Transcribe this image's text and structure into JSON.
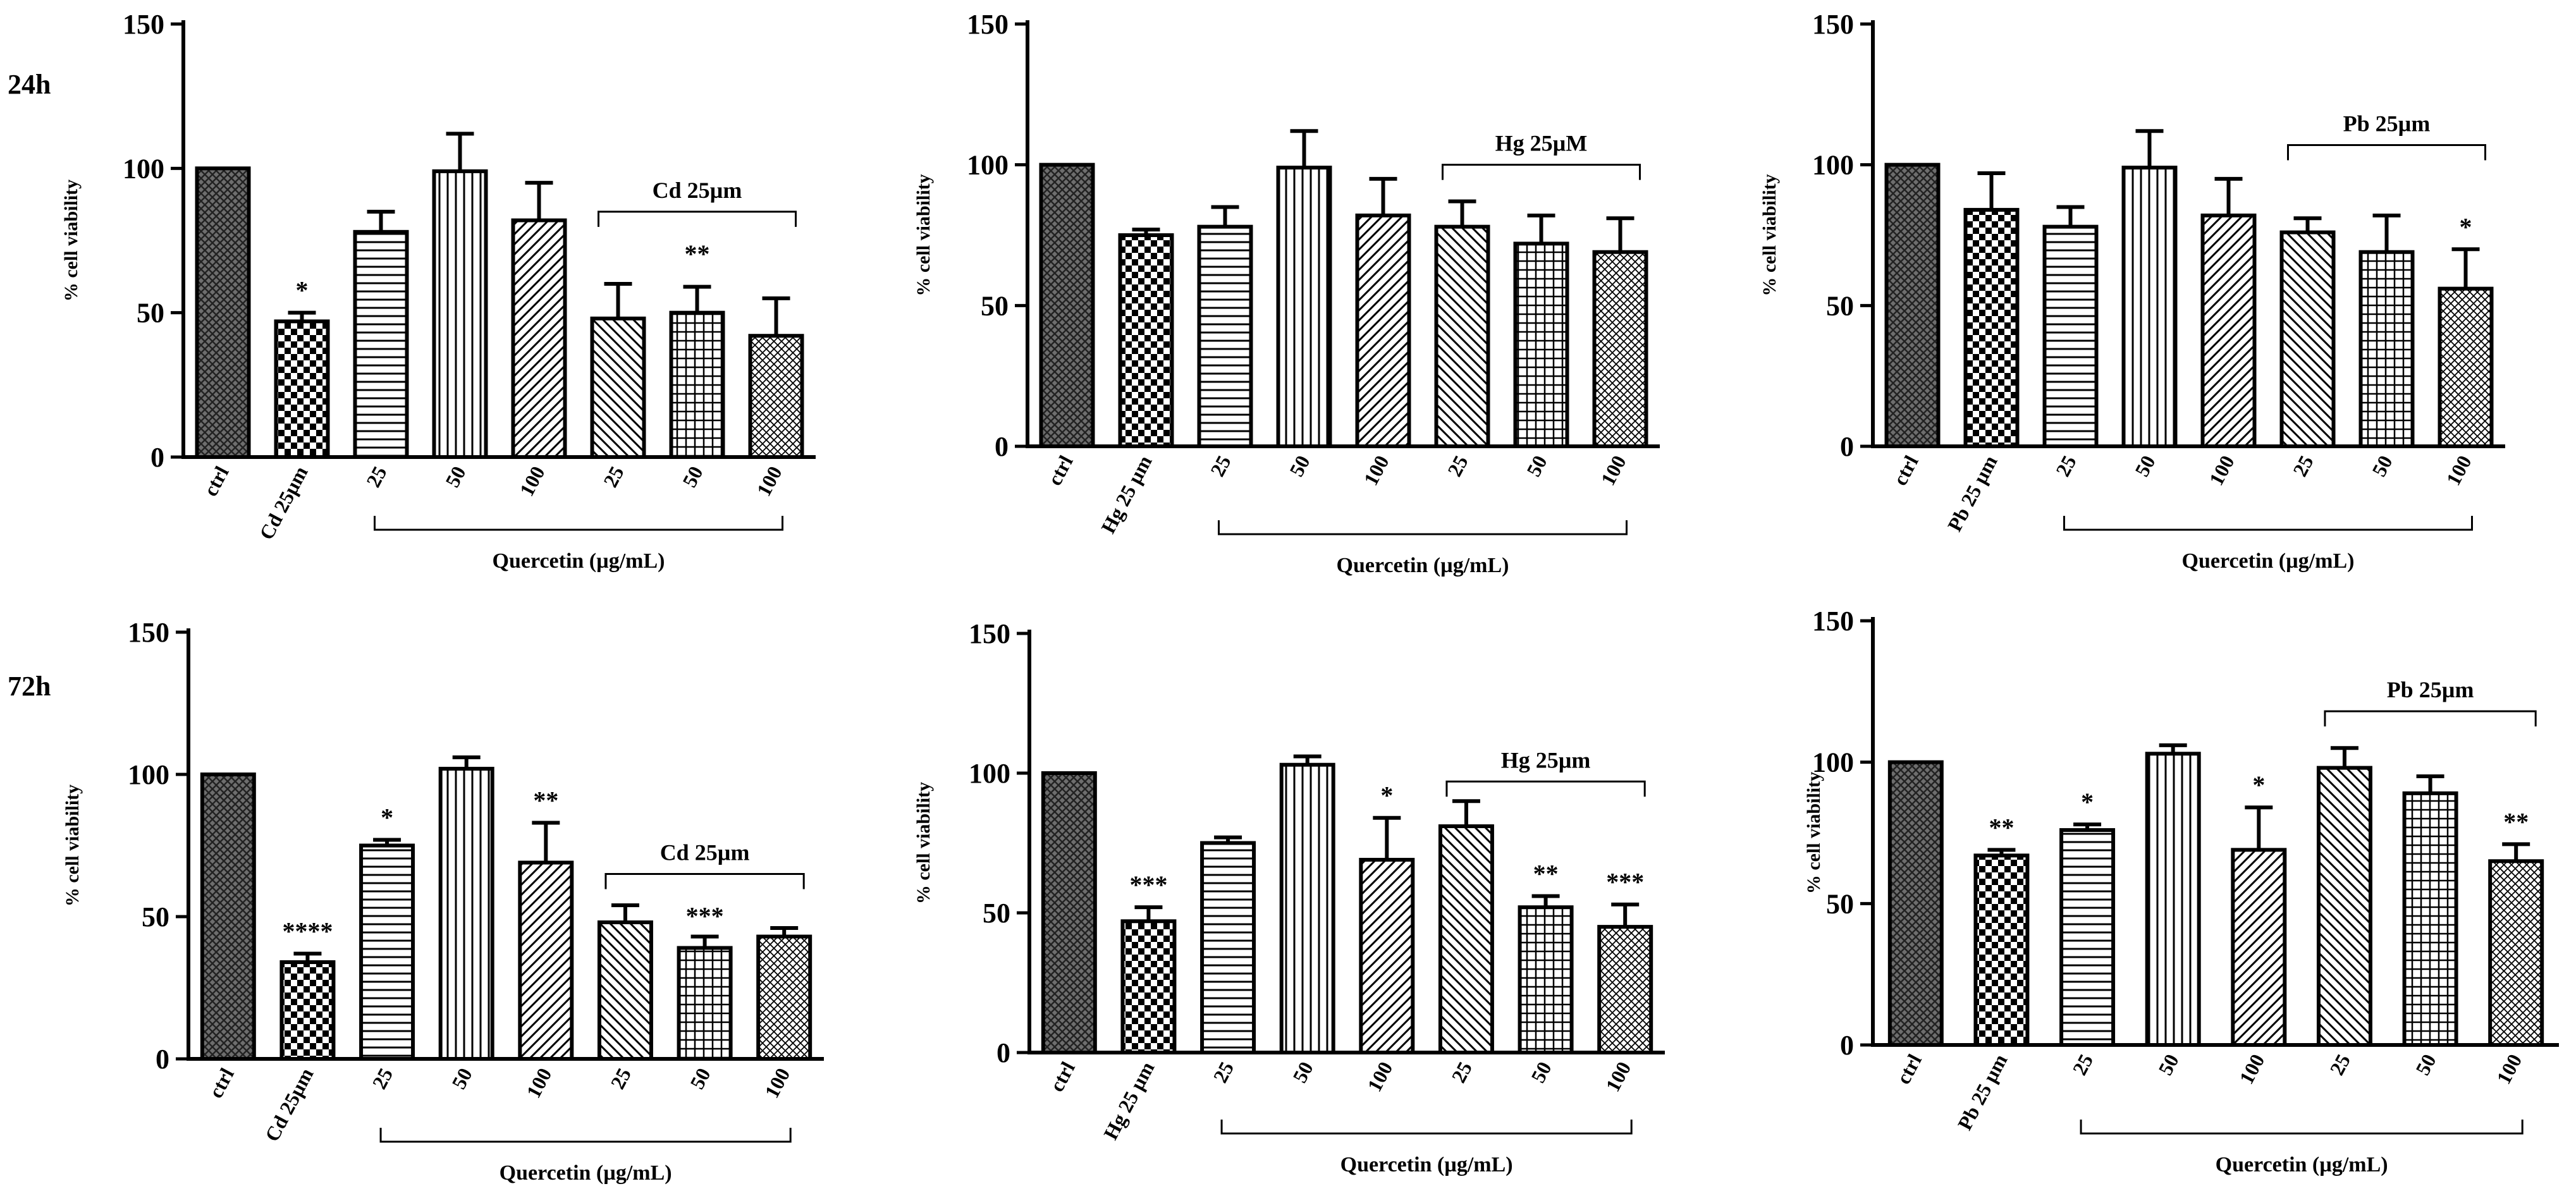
{
  "row_labels": [
    "24h",
    "72h"
  ],
  "colors": {
    "ink": "#000000",
    "ctrl_fill": "#6e6e6e",
    "background": "#ffffff"
  },
  "chart_data": [
    {
      "type": "bar",
      "row": "24h",
      "metal": "Cd",
      "categories": [
        "ctrl",
        "Cd 25µm",
        "25",
        "50",
        "100",
        "25",
        "50",
        "100"
      ],
      "patterns": [
        "crosshatch",
        "checker",
        "horizontal",
        "vertical",
        "diag-up",
        "diag-down",
        "grid",
        "crossdiag"
      ],
      "values": [
        100,
        47,
        78,
        99,
        82,
        48,
        50,
        42
      ],
      "errors": [
        0,
        3,
        7,
        13,
        13,
        12,
        9,
        13
      ],
      "significance": [
        "",
        "*",
        "",
        "",
        "",
        "",
        "",
        ""
      ],
      "group_bracket": {
        "label": "Cd 25µm",
        "from": 5,
        "to": 7,
        "y": 85,
        "stars": "**"
      },
      "quercetin_bracket": {
        "label": "Quercetin (µg/mL)",
        "from": 2,
        "to": 7
      },
      "ylabel": "% cell viability",
      "ylim": [
        0,
        150
      ],
      "yticks": [
        0,
        50,
        100,
        150
      ]
    },
    {
      "type": "bar",
      "row": "24h",
      "metal": "Hg",
      "categories": [
        "ctrl",
        "Hg 25 µm",
        "25",
        "50",
        "100",
        "25",
        "50",
        "100"
      ],
      "patterns": [
        "crosshatch",
        "checker",
        "horizontal",
        "vertical",
        "diag-up",
        "diag-down",
        "grid",
        "crossdiag"
      ],
      "values": [
        100,
        75,
        78,
        99,
        82,
        78,
        72,
        69
      ],
      "errors": [
        0,
        2,
        7,
        13,
        13,
        9,
        10,
        12
      ],
      "significance": [
        "",
        "",
        "",
        "",
        "",
        "",
        "",
        ""
      ],
      "group_bracket": {
        "label": "Hg 25µM",
        "from": 5,
        "to": 7,
        "y": 100,
        "stars": ""
      },
      "quercetin_bracket": {
        "label": "Quercetin (µg/mL)",
        "from": 2,
        "to": 7
      },
      "ylabel": "% cell viability",
      "ylim": [
        0,
        150
      ],
      "yticks": [
        0,
        50,
        100,
        150
      ]
    },
    {
      "type": "bar",
      "row": "24h",
      "metal": "Pb",
      "categories": [
        "ctrl",
        "Pb 25 µm",
        "25",
        "50",
        "100",
        "25",
        "50",
        "100"
      ],
      "patterns": [
        "crosshatch",
        "checker",
        "horizontal",
        "vertical",
        "diag-up",
        "diag-down",
        "grid",
        "crossdiag"
      ],
      "values": [
        100,
        84,
        78,
        99,
        82,
        76,
        69,
        56
      ],
      "errors": [
        0,
        13,
        7,
        13,
        13,
        5,
        13,
        14
      ],
      "significance": [
        "",
        "",
        "",
        "",
        "",
        "",
        "",
        "*"
      ],
      "group_bracket": {
        "label": "Pb 25µm",
        "from": 5,
        "to": 7,
        "y": 107,
        "stars": ""
      },
      "quercetin_bracket": {
        "label": "Quercetin (µg/mL)",
        "from": 2,
        "to": 7
      },
      "ylabel": "% cell viability",
      "ylim": [
        0,
        150
      ],
      "yticks": [
        0,
        50,
        100,
        150
      ]
    },
    {
      "type": "bar",
      "row": "72h",
      "metal": "Cd",
      "categories": [
        "ctrl",
        "Cd 25µm",
        "25",
        "50",
        "100",
        "25",
        "50",
        "100"
      ],
      "patterns": [
        "crosshatch",
        "checker",
        "horizontal",
        "vertical",
        "diag-up",
        "diag-down",
        "grid",
        "crossdiag"
      ],
      "values": [
        100,
        34,
        75,
        102,
        69,
        48,
        39,
        43
      ],
      "errors": [
        0,
        3,
        2,
        4,
        14,
        6,
        4,
        3
      ],
      "significance": [
        "",
        "****",
        "*",
        "",
        "**",
        "",
        "",
        ""
      ],
      "group_bracket": {
        "label": "Cd 25µm",
        "from": 5,
        "to": 7,
        "y": 65,
        "stars": "***"
      },
      "quercetin_bracket": {
        "label": "Quercetin (µg/mL)",
        "from": 2,
        "to": 7
      },
      "ylabel": "% cell viability",
      "ylim": [
        0,
        150
      ],
      "yticks": [
        0,
        50,
        100,
        150
      ]
    },
    {
      "type": "bar",
      "row": "72h",
      "metal": "Hg",
      "categories": [
        "ctrl",
        "Hg 25 µm",
        "25",
        "50",
        "100",
        "25",
        "50",
        "100"
      ],
      "patterns": [
        "crosshatch",
        "checker",
        "horizontal",
        "vertical",
        "diag-up",
        "diag-down",
        "grid",
        "crossdiag"
      ],
      "values": [
        100,
        47,
        75,
        103,
        69,
        81,
        52,
        45
      ],
      "errors": [
        0,
        5,
        2,
        3,
        15,
        9,
        4,
        8
      ],
      "significance": [
        "",
        "***",
        "",
        "",
        "*",
        "",
        "**",
        "***"
      ],
      "group_bracket": {
        "label": "Hg 25µm",
        "from": 5,
        "to": 7,
        "y": 97,
        "stars": ""
      },
      "quercetin_bracket": {
        "label": "Quercetin (µg/mL)",
        "from": 2,
        "to": 7
      },
      "ylabel": "% cell viability",
      "ylim": [
        0,
        150
      ],
      "yticks": [
        0,
        50,
        100,
        150
      ]
    },
    {
      "type": "bar",
      "row": "72h",
      "metal": "Pb",
      "categories": [
        "ctrl",
        "Pb 25 µm",
        "25",
        "50",
        "100",
        "25",
        "50",
        "100"
      ],
      "patterns": [
        "crosshatch",
        "checker",
        "horizontal",
        "vertical",
        "diag-up",
        "diag-down",
        "grid",
        "crossdiag"
      ],
      "values": [
        100,
        67,
        76,
        103,
        69,
        98,
        89,
        65
      ],
      "errors": [
        0,
        2,
        2,
        3,
        15,
        7,
        6,
        6
      ],
      "significance": [
        "",
        "**",
        "*",
        "",
        "*",
        "",
        "",
        "**"
      ],
      "group_bracket": {
        "label": "Pb 25µm",
        "from": 5,
        "to": 7,
        "y": 118,
        "stars": ""
      },
      "quercetin_bracket": {
        "label": "Quercetin (µg/mL)",
        "from": 2,
        "to": 7
      },
      "ylabel": "% cell viability",
      "ylim": [
        0,
        150
      ],
      "yticks": [
        0,
        50,
        100,
        150
      ]
    }
  ]
}
